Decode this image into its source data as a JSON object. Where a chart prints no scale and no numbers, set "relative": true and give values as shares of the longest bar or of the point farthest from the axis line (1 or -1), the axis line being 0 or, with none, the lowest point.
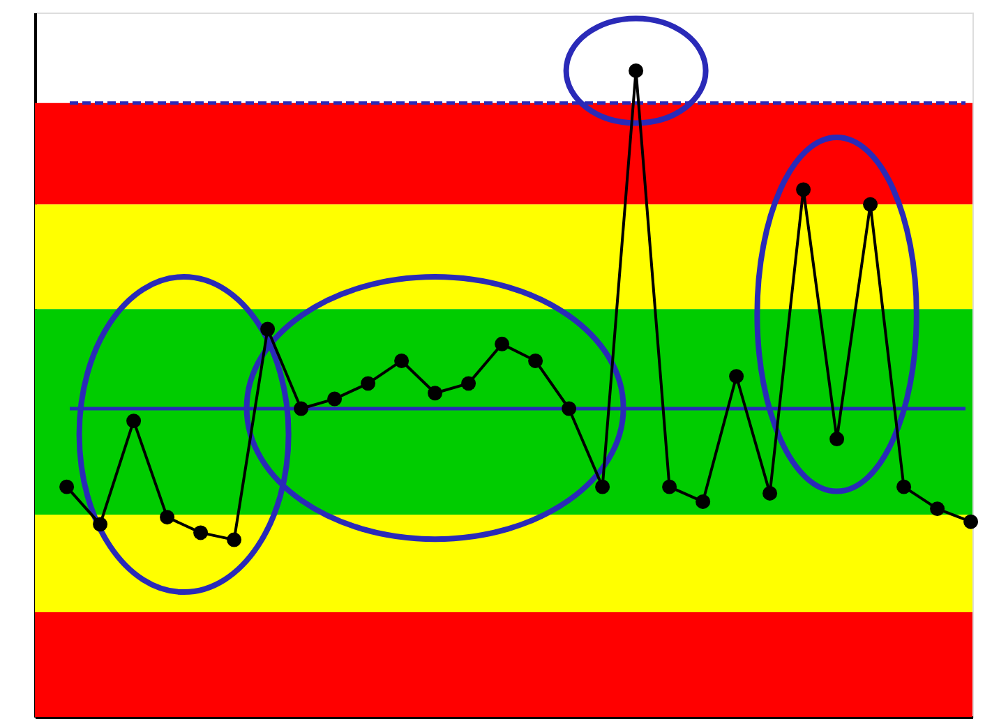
{
  "chart_data": {
    "type": "line",
    "relative": true,
    "categories": [
      null,
      null,
      null,
      null,
      null,
      null,
      null,
      null,
      null,
      null,
      null,
      null,
      null,
      null,
      null,
      null,
      null,
      null,
      null,
      null,
      null,
      null,
      null,
      null,
      null,
      null,
      null,
      null
    ],
    "series": [
      {
        "color": "#000000",
        "values": [
          0.356,
          0.298,
          0.458,
          0.309,
          0.285,
          0.274,
          0.6,
          0.477,
          0.492,
          0.516,
          0.551,
          0.501,
          0.516,
          0.577,
          0.551,
          0.477,
          0.356,
          1,
          0.356,
          0.333,
          0.527,
          0.346,
          0.816,
          0.43,
          0.793,
          0.356,
          0.322,
          0.302
        ]
      }
    ],
    "bands": [
      {
        "axis": "y",
        "from": 0.793,
        "to": 0.95,
        "color": "#ff0000"
      },
      {
        "axis": "y",
        "from": 0.631,
        "to": 0.793,
        "color": "#ffff00"
      },
      {
        "axis": "y",
        "from": 0.313,
        "to": 0.631,
        "color": "#00cc00"
      },
      {
        "axis": "y",
        "from": 0.162,
        "to": 0.313,
        "color": "#ffff00"
      },
      {
        "axis": "y",
        "from": 0,
        "to": 0.162,
        "color": "#ff0000"
      }
    ],
    "ref_lines": [
      {
        "axis": "y",
        "value": 0.477,
        "color": "#2a2ab8",
        "line_style": "solid"
      },
      {
        "axis": "y",
        "value": 0.95,
        "color": "#2a2ab8",
        "line_style": "dashed"
      }
    ],
    "marker": "circle",
    "line_style": "solid",
    "grid": false
  }
}
